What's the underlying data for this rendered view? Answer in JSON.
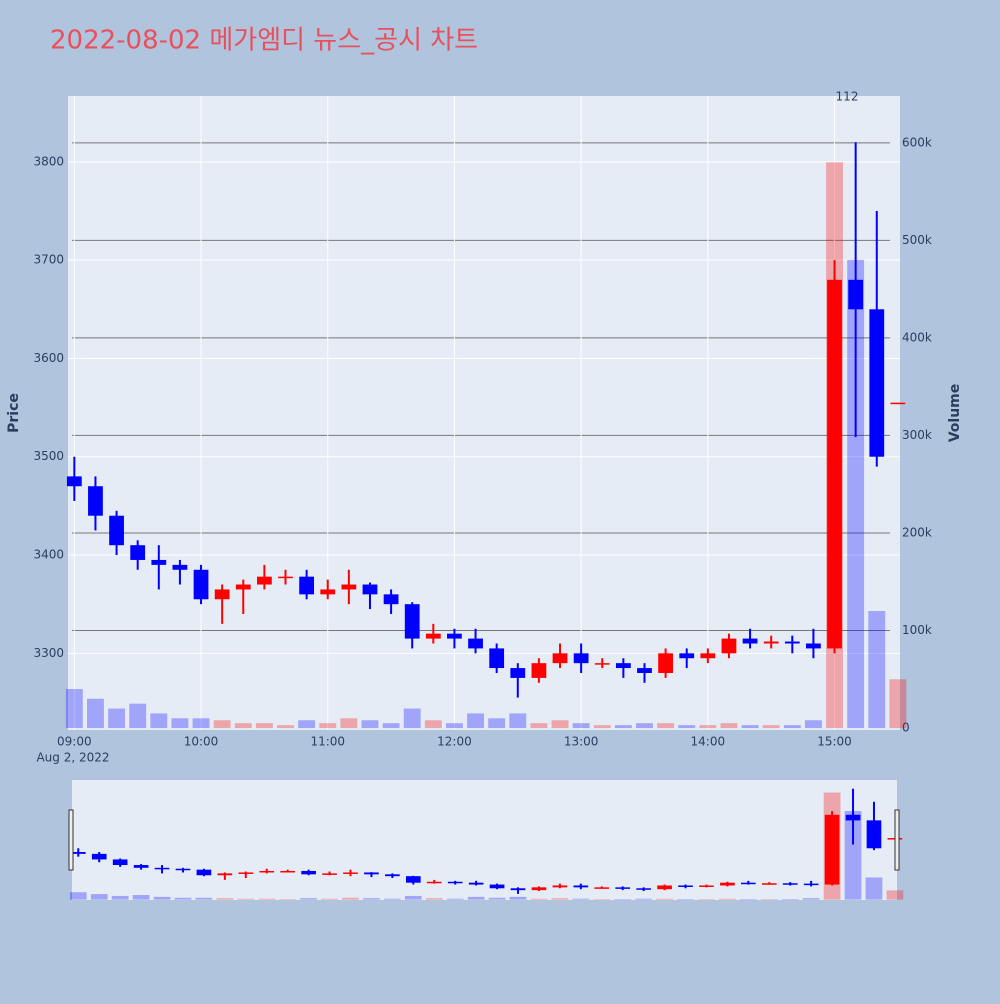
{
  "chart_data": {
    "type": "candlestick",
    "title": "2022-08-02 메가엠디 뉴스_공시 차트",
    "y_label": "Price",
    "y2_label": "Volume",
    "date_label": "Aug 2, 2022",
    "annotation": "112",
    "up_color": "#ff0000",
    "down_color": "#0000ff",
    "grid": true,
    "y2grid": true,
    "rangeslider": true,
    "x": [
      "2022-08-02 09:00",
      "2022-08-02 09:10",
      "2022-08-02 09:20",
      "2022-08-02 09:30",
      "2022-08-02 09:40",
      "2022-08-02 09:50",
      "2022-08-02 10:00",
      "2022-08-02 10:10",
      "2022-08-02 10:20",
      "2022-08-02 10:30",
      "2022-08-02 10:40",
      "2022-08-02 10:50",
      "2022-08-02 11:00",
      "2022-08-02 11:10",
      "2022-08-02 11:20",
      "2022-08-02 11:30",
      "2022-08-02 11:40",
      "2022-08-02 11:50",
      "2022-08-02 12:00",
      "2022-08-02 12:10",
      "2022-08-02 12:20",
      "2022-08-02 12:30",
      "2022-08-02 12:40",
      "2022-08-02 12:50",
      "2022-08-02 13:00",
      "2022-08-02 13:10",
      "2022-08-02 13:20",
      "2022-08-02 13:30",
      "2022-08-02 13:40",
      "2022-08-02 13:50",
      "2022-08-02 14:00",
      "2022-08-02 14:10",
      "2022-08-02 14:20",
      "2022-08-02 14:30",
      "2022-08-02 14:40",
      "2022-08-02 14:50",
      "2022-08-02 15:00",
      "2022-08-02 15:10",
      "2022-08-02 15:20",
      "2022-08-02 15:30"
    ],
    "open": [
      3480,
      3470,
      3440,
      3410,
      3395,
      3390,
      3385,
      3355,
      3365,
      3370,
      3378,
      3378,
      3360,
      3365,
      3370,
      3360,
      3350,
      3315,
      3320,
      3315,
      3305,
      3285,
      3275,
      3290,
      3300,
      3290,
      3290,
      3285,
      3280,
      3300,
      3295,
      3300,
      3315,
      3310,
      3312,
      3310,
      3305,
      3680,
      3650,
      3555
    ],
    "high": [
      3500,
      3480,
      3445,
      3415,
      3410,
      3395,
      3390,
      3370,
      3375,
      3390,
      3385,
      3385,
      3375,
      3385,
      3372,
      3365,
      3352,
      3330,
      3325,
      3325,
      3310,
      3290,
      3295,
      3310,
      3310,
      3295,
      3295,
      3290,
      3305,
      3305,
      3305,
      3320,
      3325,
      3318,
      3318,
      3325,
      3700,
      3820,
      3750,
      3555
    ],
    "low": [
      3455,
      3425,
      3400,
      3385,
      3365,
      3370,
      3350,
      3330,
      3340,
      3365,
      3370,
      3355,
      3355,
      3350,
      3345,
      3340,
      3305,
      3310,
      3305,
      3300,
      3280,
      3255,
      3270,
      3285,
      3280,
      3285,
      3275,
      3270,
      3275,
      3285,
      3290,
      3295,
      3305,
      3305,
      3300,
      3295,
      3300,
      3520,
      3490,
      3555
    ],
    "close": [
      3470,
      3440,
      3410,
      3395,
      3390,
      3385,
      3355,
      3365,
      3370,
      3378,
      3378,
      3360,
      3365,
      3370,
      3360,
      3350,
      3315,
      3320,
      3315,
      3305,
      3285,
      3275,
      3290,
      3300,
      3290,
      3290,
      3285,
      3280,
      3300,
      3295,
      3300,
      3315,
      3310,
      3312,
      3310,
      3305,
      3680,
      3650,
      3500,
      3555
    ],
    "volume": [
      40000,
      30000,
      20000,
      25000,
      15000,
      10000,
      10000,
      8000,
      5000,
      5000,
      3000,
      8000,
      5000,
      10000,
      8000,
      5000,
      20000,
      8000,
      5000,
      15000,
      10000,
      15000,
      5000,
      8000,
      5000,
      3000,
      3000,
      5000,
      5000,
      3000,
      3000,
      5000,
      3000,
      3000,
      3000,
      8000,
      580000,
      480000,
      120000,
      50000
    ],
    "xlim": [
      "2022-08-02 08:57",
      "2022-08-02 15:31"
    ],
    "xticks": [
      {
        "value": "2022-08-02 09:00",
        "label": "09:00"
      },
      {
        "value": "2022-08-02 10:00",
        "label": "10:00"
      },
      {
        "value": "2022-08-02 11:00",
        "label": "11:00"
      },
      {
        "value": "2022-08-02 12:00",
        "label": "12:00"
      },
      {
        "value": "2022-08-02 13:00",
        "label": "13:00"
      },
      {
        "value": "2022-08-02 14:00",
        "label": "14:00"
      },
      {
        "value": "2022-08-02 15:00",
        "label": "15:00"
      }
    ],
    "ylim": [
      3222,
      3867
    ],
    "yticks": [
      3300,
      3400,
      3500,
      3600,
      3700,
      3800
    ],
    "y2lim": [
      -2000,
      648000
    ],
    "y2ticks": [
      0,
      {
        "value": 100000,
        "label": "100k"
      },
      {
        "value": 200000,
        "label": "200k"
      },
      {
        "value": 300000,
        "label": "300k"
      },
      {
        "value": 400000,
        "label": "400k"
      },
      {
        "value": 500000,
        "label": "500k"
      },
      {
        "value": 600000,
        "label": "600k"
      }
    ]
  }
}
